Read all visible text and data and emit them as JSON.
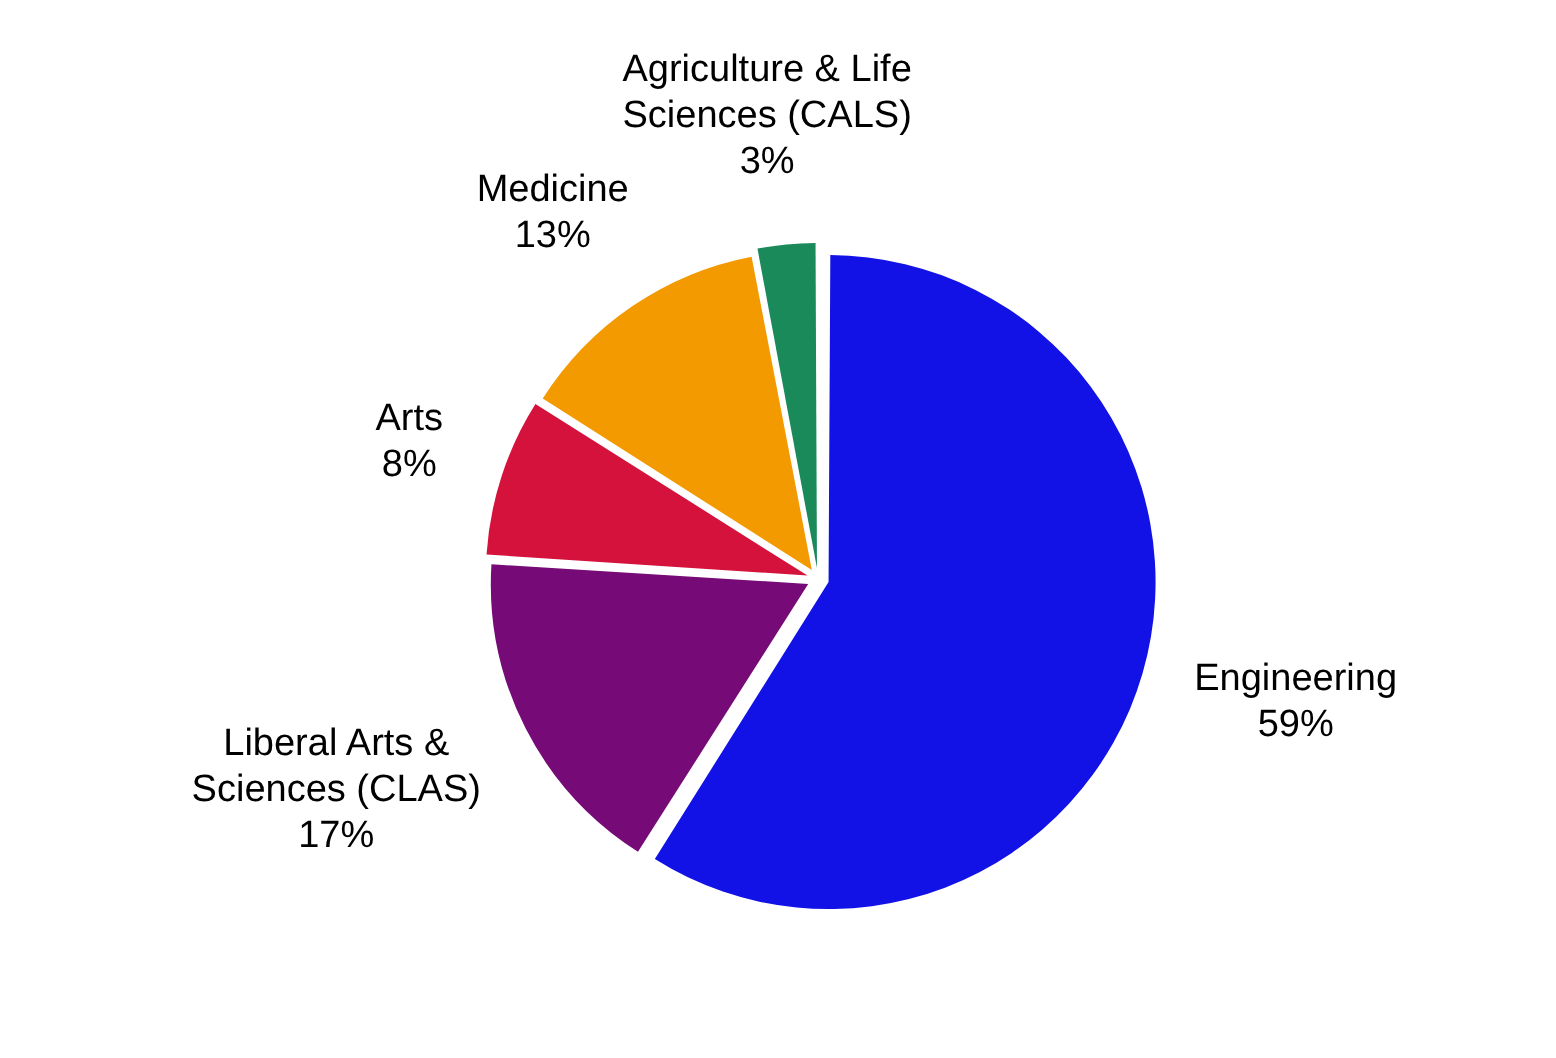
{
  "chart_data": {
    "type": "pie",
    "categories": [
      "Engineering",
      "Liberal Arts & Sciences (CLAS)",
      "Arts",
      "Medicine",
      "Agriculture & Life Sciences (CALS)"
    ],
    "values": [
      59,
      17,
      8,
      13,
      3
    ],
    "colors": [
      "#1212e6",
      "#760a76",
      "#d4123c",
      "#f29a00",
      "#1a8a5a"
    ],
    "value_labels": [
      "59%",
      "17%",
      "8%",
      "13%",
      "3%"
    ],
    "legend": false
  }
}
